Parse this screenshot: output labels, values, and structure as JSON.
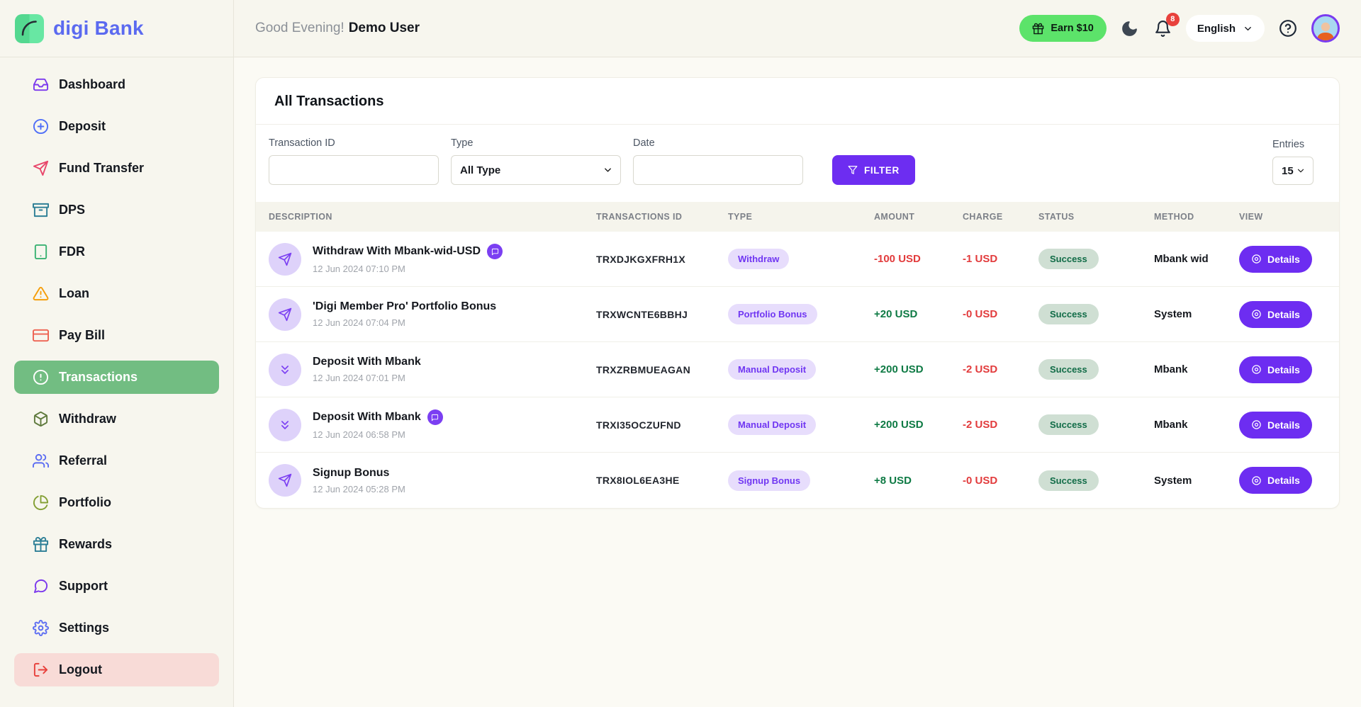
{
  "brand": {
    "name": "digi Bank",
    "brand_blue": "#5b6af0",
    "logo_green": "#5fe09b"
  },
  "header": {
    "greeting": "Good Evening!",
    "user_name": "Demo User",
    "earn_button_label": "Earn $10",
    "notification_count": "8",
    "language_selected": "English"
  },
  "sidebar": {
    "items": [
      {
        "label": "Dashboard",
        "icon": "inbox-icon",
        "color": "#7c3aed",
        "active": false
      },
      {
        "label": "Deposit",
        "icon": "plus-circle-icon",
        "color": "#4f6ef7",
        "active": false
      },
      {
        "label": "Fund Transfer",
        "icon": "send-icon",
        "color": "#e8476b",
        "active": false
      },
      {
        "label": "DPS",
        "icon": "archive-icon",
        "color": "#2e7f96",
        "active": false
      },
      {
        "label": "FDR",
        "icon": "tablet-icon",
        "color": "#3bb273",
        "active": false
      },
      {
        "label": "Loan",
        "icon": "alert-triangle-icon",
        "color": "#f59e0b",
        "active": false
      },
      {
        "label": "Pay Bill",
        "icon": "credit-card-icon",
        "color": "#ee6352",
        "active": false
      },
      {
        "label": "Transactions",
        "icon": "alert-circle-icon",
        "color": "#ffffff",
        "active": true
      },
      {
        "label": "Withdraw",
        "icon": "box-icon",
        "color": "#5f7a3d",
        "active": false
      },
      {
        "label": "Referral",
        "icon": "users-icon",
        "color": "#5b6cf2",
        "active": false
      },
      {
        "label": "Portfolio",
        "icon": "pie-chart-icon",
        "color": "#84a035",
        "active": false
      },
      {
        "label": "Rewards",
        "icon": "gift-icon",
        "color": "#2e7f96",
        "active": false
      },
      {
        "label": "Support",
        "icon": "message-circle-icon",
        "color": "#7c3aed",
        "active": false
      },
      {
        "label": "Settings",
        "icon": "settings-icon",
        "color": "#5b6cf2",
        "active": false
      },
      {
        "label": "Logout",
        "icon": "log-out-icon",
        "color": "#e8413c",
        "active": false,
        "variant": "logout"
      }
    ]
  },
  "panel": {
    "title": "All Transactions",
    "filters": {
      "transaction_id_label": "Transaction ID",
      "transaction_id_value": "",
      "type_label": "Type",
      "type_selected": "All Type",
      "date_label": "Date",
      "date_value": "",
      "filter_button_label": "FILTER",
      "entries_label": "Entries",
      "entries_selected": "15"
    },
    "table": {
      "headers": [
        "DESCRIPTION",
        "TRANSACTIONS ID",
        "TYPE",
        "AMOUNT",
        "CHARGE",
        "STATUS",
        "METHOD",
        "VIEW"
      ],
      "details_button_label": "Details",
      "rows": [
        {
          "icon": "send-icon",
          "has_note": true,
          "title": "Withdraw With Mbank-wid-USD",
          "datetime": "12 Jun 2024 07:10 PM",
          "transaction_id": "TRXDJKGXFRH1X",
          "type": "Withdraw",
          "amount": "-100 USD",
          "amount_direction": "negative",
          "charge": "-1 USD",
          "status": "Success",
          "method": "Mbank wid"
        },
        {
          "icon": "send-icon",
          "has_note": false,
          "title": "'Digi Member Pro' Portfolio Bonus",
          "datetime": "12 Jun 2024 07:04 PM",
          "transaction_id": "TRXWCNTE6BBHJ",
          "type": "Portfolio Bonus",
          "amount": "+20 USD",
          "amount_direction": "positive",
          "charge": "-0 USD",
          "status": "Success",
          "method": "System"
        },
        {
          "icon": "chevrons-down-icon",
          "has_note": false,
          "title": "Deposit With Mbank",
          "datetime": "12 Jun 2024 07:01 PM",
          "transaction_id": "TRXZRBMUEAGAN",
          "type": "Manual Deposit",
          "amount": "+200 USD",
          "amount_direction": "positive",
          "charge": "-2 USD",
          "status": "Success",
          "method": "Mbank"
        },
        {
          "icon": "chevrons-down-icon",
          "has_note": true,
          "title": "Deposit With Mbank",
          "datetime": "12 Jun 2024 06:58 PM",
          "transaction_id": "TRXI35OCZUFND",
          "type": "Manual Deposit",
          "amount": "+200 USD",
          "amount_direction": "positive",
          "charge": "-2 USD",
          "status": "Success",
          "method": "Mbank"
        },
        {
          "icon": "send-icon",
          "has_note": false,
          "title": "Signup Bonus",
          "datetime": "12 Jun 2024 05:28 PM",
          "transaction_id": "TRX8IOL6EA3HE",
          "type": "Signup Bonus",
          "amount": "+8 USD",
          "amount_direction": "positive",
          "charge": "-0 USD",
          "status": "Success",
          "method": "System"
        }
      ]
    }
  },
  "colors": {
    "accent_purple": "#6d2df1",
    "active_nav_green": "#72bd82",
    "earn_green": "#5ce36a",
    "success_bg": "#cfdfd3",
    "success_text": "#116c47",
    "negative_red": "#e23b3c",
    "positive_green": "#0e7a44",
    "type_badge_bg": "#e7ddfc",
    "type_badge_text": "#7036f2",
    "logout_bg": "#f8dbd7"
  }
}
